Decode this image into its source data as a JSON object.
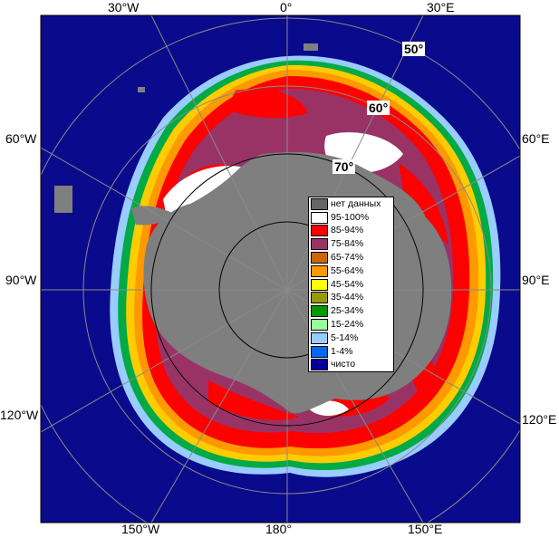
{
  "lon_labels": {
    "w30": "30°W",
    "zero": "0°",
    "e30": "30°E",
    "w60": "60°W",
    "e60": "60°E",
    "w90": "90°W",
    "e90": "90°E",
    "w120": "120°W",
    "e120": "120°E",
    "w150": "150°W",
    "s180": "180°",
    "e150": "150°E"
  },
  "lat_labels": {
    "l50": "50°",
    "l60": "60°",
    "l70": "70°"
  },
  "legend": [
    {
      "label": "нет данных",
      "color": "#666666"
    },
    {
      "label": "95-100%",
      "color": "#ffffff"
    },
    {
      "label": "85-94%",
      "color": "#ff0000"
    },
    {
      "label": "75-84%",
      "color": "#993366"
    },
    {
      "label": "65-74%",
      "color": "#cc6600"
    },
    {
      "label": "55-64%",
      "color": "#ff9900"
    },
    {
      "label": "45-54%",
      "color": "#ffff00"
    },
    {
      "label": "35-44%",
      "color": "#999900"
    },
    {
      "label": "25-34%",
      "color": "#009900"
    },
    {
      "label": "15-24%",
      "color": "#99ff99"
    },
    {
      "label": "5-14%",
      "color": "#99ccff"
    },
    {
      "label": "1-4%",
      "color": "#0066ff"
    },
    {
      "label": "чисто",
      "color": "#000099"
    }
  ],
  "colors": {
    "ocean": "#0a0a8c",
    "land": "#7f7f7f",
    "grid": "#000000"
  }
}
